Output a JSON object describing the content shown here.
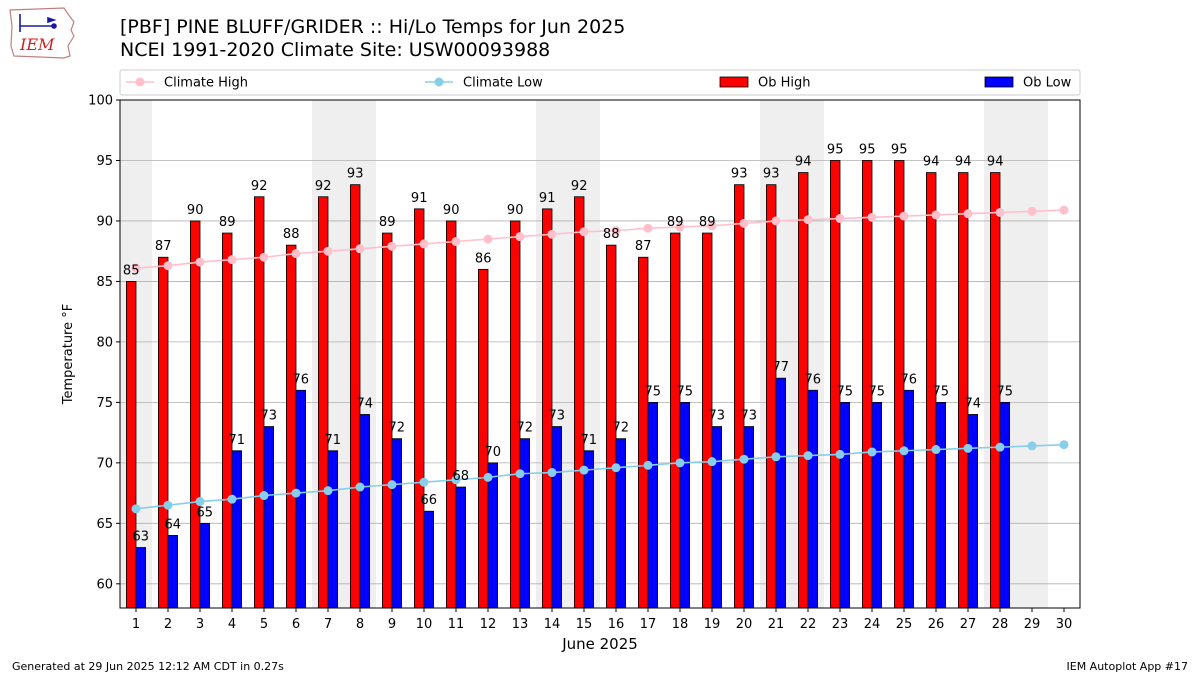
{
  "header": {
    "title_line1": "[PBF] PINE BLUFF/GRIDER :: Hi/Lo Temps for Jun 2025",
    "title_line2": "NCEI 1991-2020 Climate Site: USW00093988",
    "logo_text": "IEM"
  },
  "footer": {
    "generated": "Generated at 29 Jun 2025 12:12 AM CDT in 0.27s",
    "app": "IEM Autoplot App #17"
  },
  "chart_data": {
    "type": "bar",
    "xlabel": "June 2025",
    "ylabel": "Temperature °F",
    "ylim": [
      58,
      100
    ],
    "yticks": [
      60,
      65,
      70,
      75,
      80,
      85,
      90,
      95,
      100
    ],
    "xlim": [
      0.5,
      30.5
    ],
    "grid": true,
    "legend_position": "top",
    "days": [
      1,
      2,
      3,
      4,
      5,
      6,
      7,
      8,
      9,
      10,
      11,
      12,
      13,
      14,
      15,
      16,
      17,
      18,
      19,
      20,
      21,
      22,
      23,
      24,
      25,
      26,
      27,
      28,
      29,
      30
    ],
    "weekend_days": [
      1,
      7,
      8,
      14,
      15,
      21,
      22,
      28,
      29
    ],
    "colors": {
      "ob_high": "#ff0000",
      "ob_low": "#0000ff",
      "climate_high": "#ffc0cb",
      "climate_low": "#87ceeb",
      "weekend_shade": "#efefef",
      "grid": "#b0b0b0"
    },
    "series": [
      {
        "name": "Climate High",
        "kind": "line",
        "values": [
          86.1,
          86.3,
          86.6,
          86.8,
          87.0,
          87.3,
          87.5,
          87.7,
          87.9,
          88.1,
          88.3,
          88.5,
          88.7,
          88.9,
          89.1,
          89.2,
          89.4,
          89.5,
          89.6,
          89.8,
          90.0,
          90.1,
          90.2,
          90.3,
          90.4,
          90.5,
          90.6,
          90.7,
          90.8,
          90.9
        ]
      },
      {
        "name": "Climate Low",
        "kind": "line",
        "values": [
          66.2,
          66.5,
          66.8,
          67.0,
          67.3,
          67.5,
          67.7,
          68.0,
          68.2,
          68.4,
          68.6,
          68.8,
          69.1,
          69.2,
          69.4,
          69.6,
          69.8,
          70.0,
          70.1,
          70.3,
          70.5,
          70.6,
          70.7,
          70.9,
          71.0,
          71.1,
          71.2,
          71.3,
          71.4,
          71.5
        ]
      },
      {
        "name": "Ob High",
        "kind": "bar",
        "values": [
          85,
          87,
          90,
          89,
          92,
          88,
          92,
          93,
          89,
          91,
          90,
          86,
          90,
          91,
          92,
          88,
          87,
          89,
          89,
          93,
          93,
          94,
          95,
          95,
          95,
          94,
          94,
          94
        ]
      },
      {
        "name": "Ob Low",
        "kind": "bar",
        "values": [
          63,
          64,
          65,
          71,
          73,
          76,
          71,
          74,
          72,
          66,
          68,
          70,
          72,
          73,
          71,
          72,
          75,
          75,
          73,
          73,
          77,
          76,
          75,
          75,
          76,
          75,
          74,
          75
        ]
      }
    ]
  }
}
